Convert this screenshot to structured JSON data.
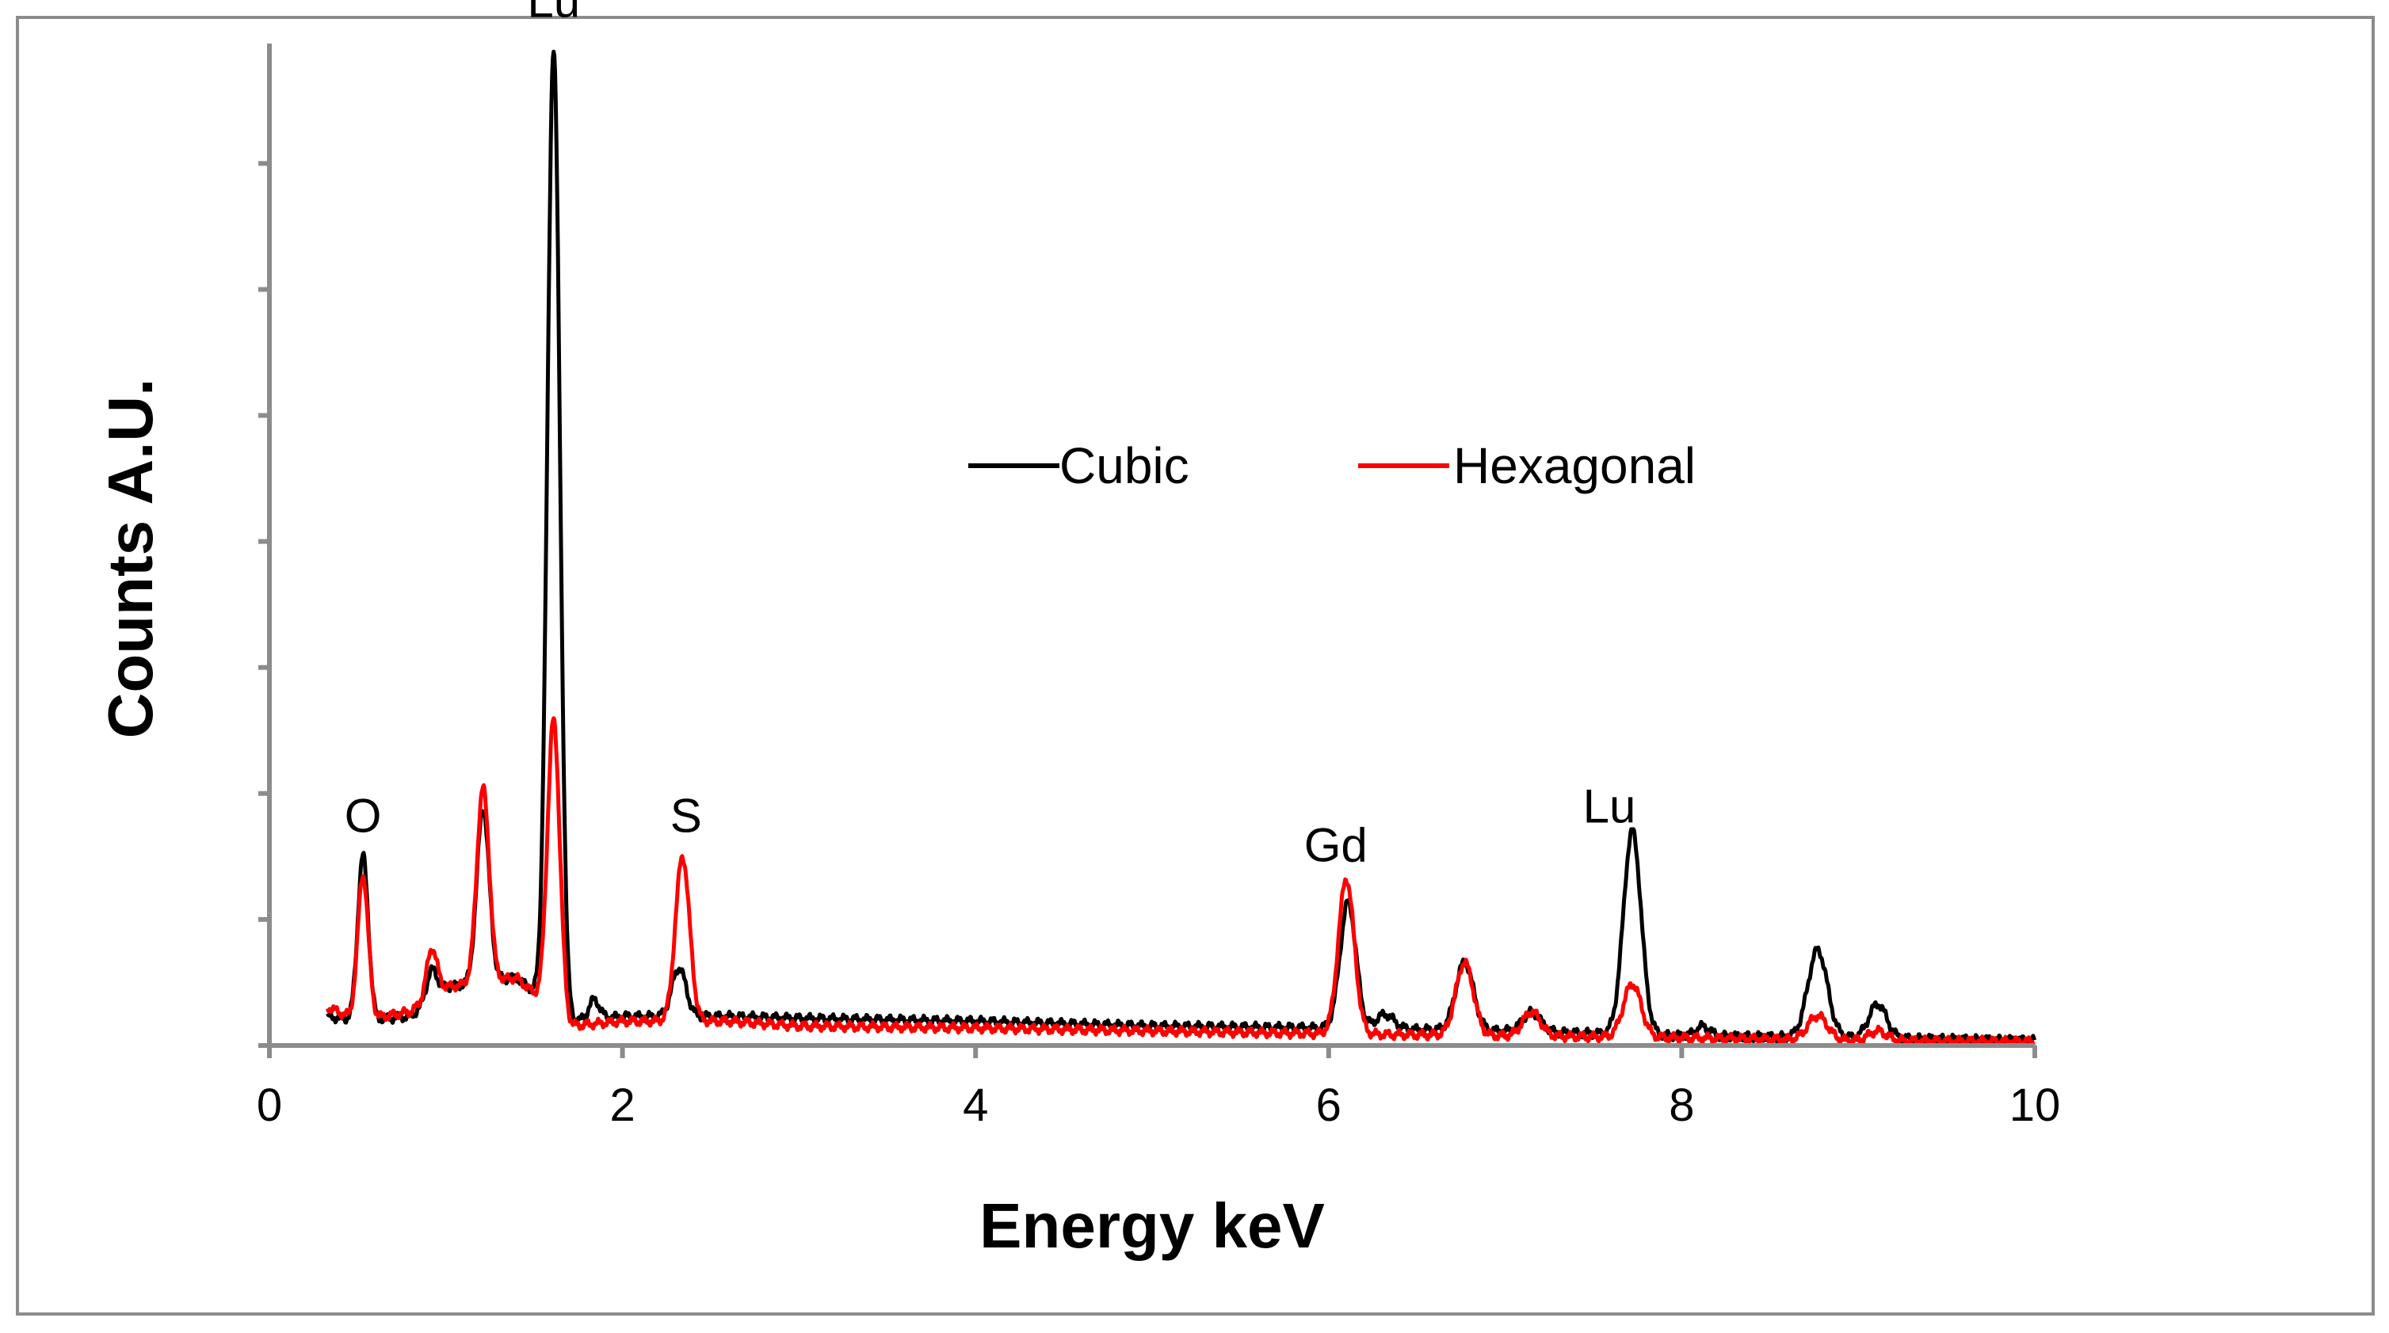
{
  "chart_data": {
    "type": "line",
    "title": "",
    "xlabel": "Energy keV",
    "ylabel": "Counts  A.U.",
    "xlim": [
      0,
      10
    ],
    "ylim": [
      0,
      1
    ],
    "xticks": [
      0,
      2,
      4,
      6,
      8,
      10
    ],
    "x_tick_labels": [
      "0",
      "2",
      "4",
      "6",
      "8",
      "10"
    ],
    "y_tick_count": 8,
    "legend_position": "top-center",
    "colors": {
      "Cubic": "#000000",
      "Hexagonal": "#ff0000"
    },
    "series": [
      {
        "name": "Cubic",
        "color": "#000000",
        "baseline": [
          [
            0.33,
            0.03
          ],
          [
            0.5,
            0.025
          ],
          [
            0.8,
            0.03
          ],
          [
            1.0,
            0.06
          ],
          [
            1.4,
            0.07
          ],
          [
            1.7,
            0.025
          ],
          [
            2.0,
            0.03
          ],
          [
            2.6,
            0.03
          ],
          [
            3.0,
            0.028
          ],
          [
            4.0,
            0.025
          ],
          [
            5.0,
            0.02
          ],
          [
            6.0,
            0.018
          ],
          [
            7.0,
            0.015
          ],
          [
            8.0,
            0.01
          ],
          [
            9.0,
            0.008
          ],
          [
            10.0,
            0.005
          ]
        ],
        "peaks": [
          {
            "center": 0.53,
            "height": 0.17,
            "width": 0.03
          },
          {
            "center": 0.92,
            "height": 0.03,
            "width": 0.03
          },
          {
            "center": 1.21,
            "height": 0.18,
            "width": 0.035
          },
          {
            "center": 1.61,
            "height": 0.99,
            "width": 0.035
          },
          {
            "center": 1.84,
            "height": 0.02,
            "width": 0.03
          },
          {
            "center": 2.32,
            "height": 0.05,
            "width": 0.04
          },
          {
            "center": 6.11,
            "height": 0.13,
            "width": 0.045
          },
          {
            "center": 6.32,
            "height": 0.015,
            "width": 0.05
          },
          {
            "center": 6.77,
            "height": 0.07,
            "width": 0.05
          },
          {
            "center": 7.15,
            "height": 0.02,
            "width": 0.05
          },
          {
            "center": 7.72,
            "height": 0.21,
            "width": 0.05
          },
          {
            "center": 8.12,
            "height": 0.01,
            "width": 0.04
          },
          {
            "center": 8.77,
            "height": 0.09,
            "width": 0.055
          },
          {
            "center": 9.11,
            "height": 0.035,
            "width": 0.05
          }
        ]
      },
      {
        "name": "Hexagonal",
        "color": "#ff0000",
        "baseline": [
          [
            0.33,
            0.04
          ],
          [
            0.5,
            0.025
          ],
          [
            0.8,
            0.035
          ],
          [
            1.0,
            0.06
          ],
          [
            1.4,
            0.07
          ],
          [
            1.7,
            0.02
          ],
          [
            2.0,
            0.025
          ],
          [
            2.6,
            0.025
          ],
          [
            3.0,
            0.02
          ],
          [
            4.0,
            0.018
          ],
          [
            5.0,
            0.015
          ],
          [
            6.0,
            0.012
          ],
          [
            7.0,
            0.01
          ],
          [
            8.0,
            0.008
          ],
          [
            9.0,
            0.005
          ],
          [
            10.0,
            0.004
          ]
        ],
        "peaks": [
          {
            "center": 0.53,
            "height": 0.15,
            "width": 0.03
          },
          {
            "center": 0.92,
            "height": 0.05,
            "width": 0.03
          },
          {
            "center": 1.21,
            "height": 0.2,
            "width": 0.035
          },
          {
            "center": 1.61,
            "height": 0.3,
            "width": 0.035
          },
          {
            "center": 2.34,
            "height": 0.17,
            "width": 0.04
          },
          {
            "center": 6.1,
            "height": 0.16,
            "width": 0.045
          },
          {
            "center": 6.77,
            "height": 0.075,
            "width": 0.05
          },
          {
            "center": 7.15,
            "height": 0.025,
            "width": 0.05
          },
          {
            "center": 7.72,
            "height": 0.055,
            "width": 0.05
          },
          {
            "center": 8.77,
            "height": 0.025,
            "width": 0.055
          },
          {
            "center": 9.11,
            "height": 0.01,
            "width": 0.05
          }
        ]
      }
    ],
    "annotations": [
      {
        "text": "O",
        "x": 0.53,
        "y": 0.22
      },
      {
        "text": "Lu",
        "x": 1.61,
        "y": 1.06
      },
      {
        "text": "S",
        "x": 2.36,
        "y": 0.22
      },
      {
        "text": "Gd",
        "x": 6.04,
        "y": 0.19
      },
      {
        "text": "Lu",
        "x": 7.59,
        "y": 0.23
      }
    ]
  }
}
